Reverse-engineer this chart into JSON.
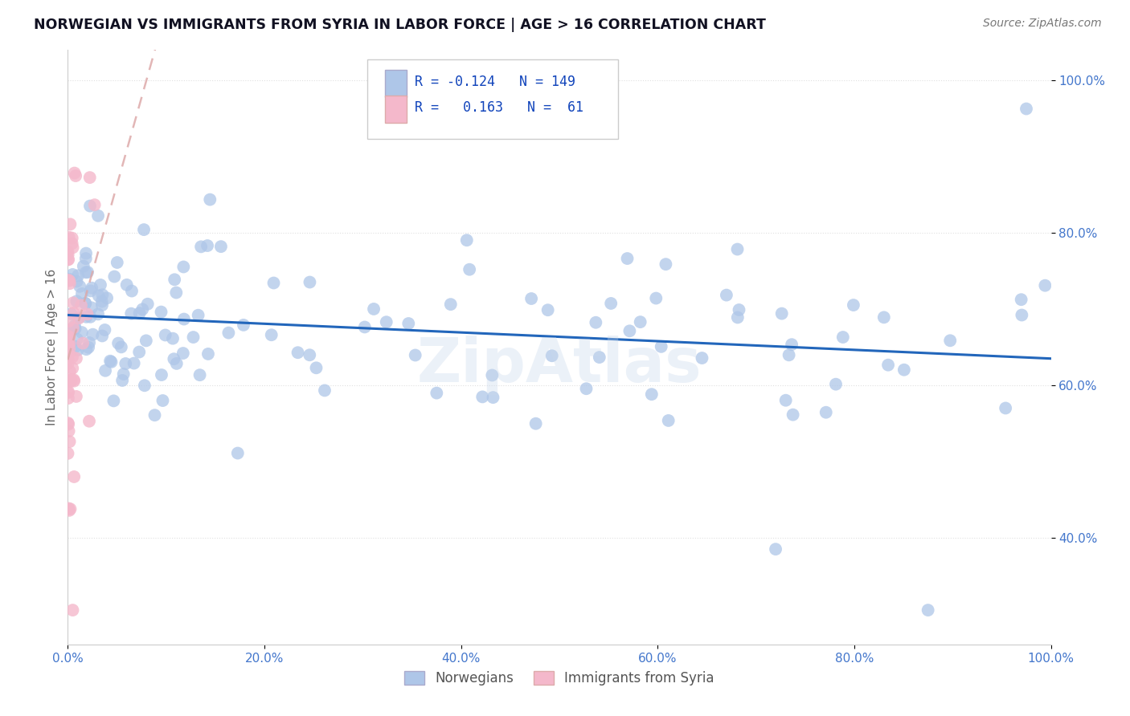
{
  "title": "NORWEGIAN VS IMMIGRANTS FROM SYRIA IN LABOR FORCE | AGE > 16 CORRELATION CHART",
  "source": "Source: ZipAtlas.com",
  "ylabel": "In Labor Force | Age > 16",
  "watermark": "ZipAtlas",
  "r1": "-0.124",
  "n1": "149",
  "r2": " 0.163",
  "n2": " 61",
  "color_norwegian": "#aec6e8",
  "color_syria": "#f4b8cb",
  "color_line_norwegian": "#2266bb",
  "color_line_syria": "#e8aaaa",
  "color_ticks": "#4477cc",
  "background_color": "#ffffff",
  "grid_color": "#e0e0e0",
  "grid_style": "dotted"
}
